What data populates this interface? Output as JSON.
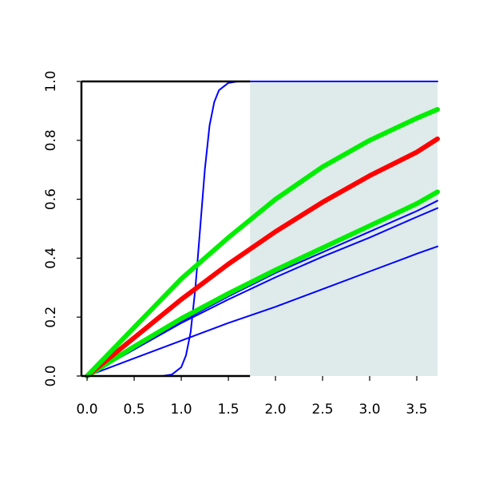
{
  "chart_data": {
    "type": "line",
    "title": "",
    "xlabel": "",
    "ylabel": "",
    "xlim": [
      -0.06,
      3.72
    ],
    "ylim": [
      0.0,
      1.0
    ],
    "x_ticks": [
      0.0,
      0.5,
      1.0,
      1.5,
      2.0,
      2.5,
      3.0,
      3.5
    ],
    "x_tick_labels": [
      "0.0",
      "0.5",
      "1.0",
      "1.5",
      "2.0",
      "2.5",
      "3.0",
      "3.5"
    ],
    "y_ticks": [
      0.0,
      0.2,
      0.4,
      0.6,
      0.8,
      1.0
    ],
    "y_tick_labels": [
      "0.0",
      "0.2",
      "0.4",
      "0.6",
      "0.8",
      "1.0"
    ],
    "shaded_region": {
      "x_start": 1.73,
      "x_end": 3.72,
      "y_start": 0.0,
      "y_end": 1.0,
      "color": "#deebea"
    },
    "grid": false,
    "legend": "none",
    "series": [
      {
        "color": "#0000ff",
        "width": "thin",
        "x": [
          0.0,
          0.8,
          0.9,
          1.0,
          1.05,
          1.1,
          1.15,
          1.2,
          1.25,
          1.3,
          1.35,
          1.4,
          1.5,
          1.6,
          3.72
        ],
        "y": [
          0.0,
          0.0,
          0.005,
          0.03,
          0.07,
          0.15,
          0.3,
          0.5,
          0.7,
          0.85,
          0.93,
          0.97,
          0.995,
          1.0,
          1.0
        ]
      },
      {
        "color": "#0000ff",
        "width": "thin",
        "x": [
          0.0,
          0.5,
          1.0,
          1.5,
          2.0,
          2.5,
          3.0,
          3.5,
          3.72
        ],
        "y": [
          0.0,
          0.06,
          0.12,
          0.18,
          0.235,
          0.295,
          0.355,
          0.415,
          0.44
        ]
      },
      {
        "color": "#0000ff",
        "width": "thin",
        "x": [
          0.0,
          0.5,
          1.0,
          1.5,
          2.0,
          2.5,
          3.0,
          3.5,
          3.72
        ],
        "y": [
          0.0,
          0.09,
          0.18,
          0.26,
          0.335,
          0.405,
          0.47,
          0.54,
          0.57
        ]
      },
      {
        "color": "#0000ff",
        "width": "thin",
        "x": [
          0.0,
          0.5,
          1.0,
          1.5,
          2.0,
          2.5,
          3.0,
          3.5,
          3.72
        ],
        "y": [
          0.0,
          0.095,
          0.185,
          0.27,
          0.35,
          0.42,
          0.49,
          0.56,
          0.595
        ]
      },
      {
        "color": "#00ee00",
        "width": "thick",
        "x": [
          0.0,
          0.5,
          1.0,
          1.5,
          2.0,
          2.5,
          3.0,
          3.5,
          3.72
        ],
        "y": [
          0.0,
          0.1,
          0.195,
          0.28,
          0.36,
          0.435,
          0.51,
          0.585,
          0.625
        ]
      },
      {
        "color": "#ff0000",
        "width": "thick",
        "x": [
          0.0,
          0.5,
          1.0,
          1.5,
          2.0,
          2.5,
          3.0,
          3.5,
          3.72
        ],
        "y": [
          0.0,
          0.13,
          0.26,
          0.38,
          0.49,
          0.59,
          0.68,
          0.76,
          0.805
        ]
      },
      {
        "color": "#00ee00",
        "width": "thick",
        "x": [
          0.0,
          0.5,
          1.0,
          1.5,
          2.0,
          2.5,
          3.0,
          3.5,
          3.72
        ],
        "y": [
          0.0,
          0.165,
          0.33,
          0.47,
          0.6,
          0.71,
          0.8,
          0.875,
          0.905
        ]
      }
    ]
  }
}
